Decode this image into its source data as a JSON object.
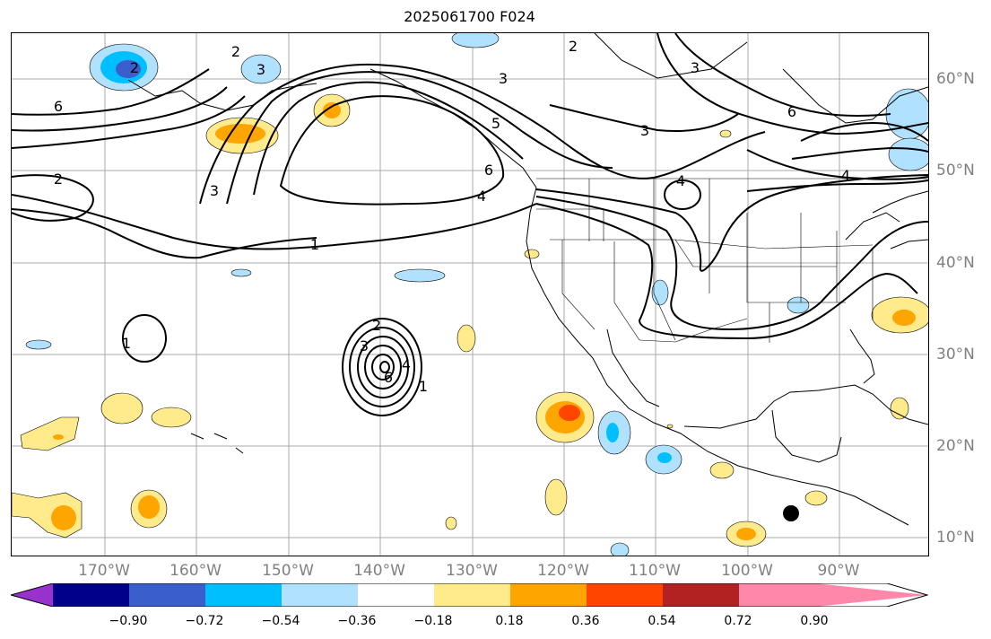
{
  "title": "2025061700 F024",
  "lon_labels": [
    "170°W",
    "160°W",
    "150°W",
    "140°W",
    "130°W",
    "120°W",
    "110°W",
    "100°W",
    "90°W"
  ],
  "lat_labels": [
    "60°N",
    "50°N",
    "40°N",
    "30°N",
    "20°N",
    "10°N"
  ],
  "colorbar": {
    "colors": [
      "#9932cc",
      "#00008b",
      "#3a5fcd",
      "#00bfff",
      "#b0e2ff",
      "#ffffff",
      "#ffeb8c",
      "#ffa500",
      "#ff4500",
      "#b22222",
      "#ff88aa"
    ],
    "tick_labels": [
      "−0.90",
      "−0.72",
      "−0.54",
      "−0.36",
      "−0.18",
      "0.18",
      "0.36",
      "0.54",
      "0.72",
      "0.90"
    ]
  },
  "contour_labels": [
    "6",
    "2",
    "3",
    "2",
    "3",
    "5",
    "6",
    "4",
    "1",
    "2",
    "3",
    "2",
    "3",
    "3",
    "6",
    "4",
    "4",
    "1",
    "2",
    "3",
    "4",
    "1",
    "6"
  ],
  "marker": {
    "type": "dot",
    "color": "#000000"
  }
}
